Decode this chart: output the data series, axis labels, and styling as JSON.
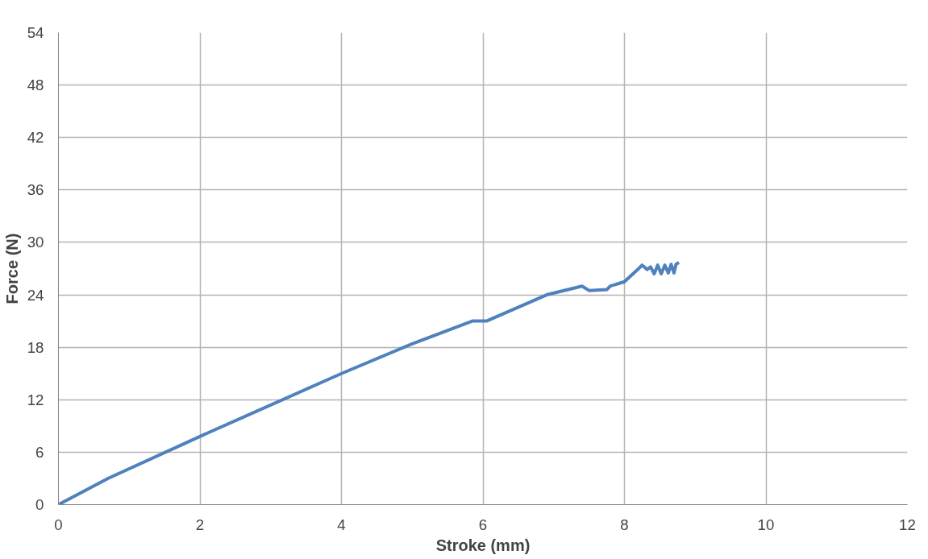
{
  "chart_data": {
    "type": "line",
    "xlabel": "Stroke (mm)",
    "ylabel": "Force (N)",
    "xlim": [
      0,
      12
    ],
    "ylim": [
      0,
      54
    ],
    "xticks": [
      0,
      2,
      4,
      6,
      8,
      10,
      12
    ],
    "yticks": [
      0,
      6,
      12,
      18,
      24,
      30,
      36,
      42,
      48,
      54
    ],
    "grid": true,
    "marker": "none",
    "line_style": "solid",
    "series": [
      {
        "color": "#4f81bd",
        "x": [
          0,
          0.7,
          2,
          4,
          5,
          5.85,
          6.05,
          6.9,
          7.4,
          7.5,
          7.75,
          7.8,
          8,
          8.2,
          8.25,
          8.32,
          8.37,
          8.42,
          8.47,
          8.52,
          8.57,
          8.62,
          8.66,
          8.7,
          8.73,
          8.77
        ],
        "values": [
          0,
          3,
          7.8,
          15,
          18.4,
          21,
          21,
          24,
          25,
          24.5,
          24.6,
          25,
          25.5,
          27,
          27.4,
          26.9,
          27.2,
          26.4,
          27.4,
          26.4,
          27.4,
          26.5,
          27.5,
          26.5,
          27.5,
          27.7
        ]
      }
    ]
  }
}
